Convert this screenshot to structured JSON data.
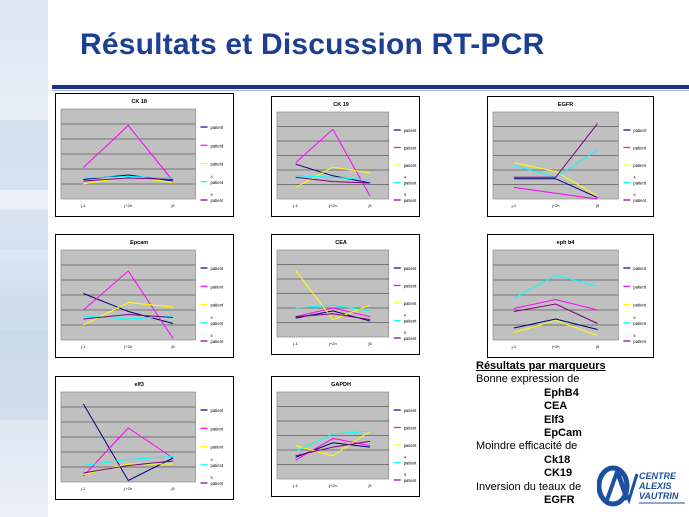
{
  "slide": {
    "title": "Résultats et Discussion  RT-PCR"
  },
  "colors": {
    "title": "#1c3f94",
    "plot_bg": "#c0c0c0"
  },
  "series_colors": [
    "#000080",
    "#ff00ff",
    "#ffff00",
    "#00ffff",
    "#800080"
  ],
  "summary": {
    "heading": "Résultats par marqueurs",
    "good": "Bonne expression de",
    "good_items": [
      "EphB4",
      "CEA",
      "Elf3",
      "EpCam"
    ],
    "less": "Moindre efficacité de",
    "less_items": [
      "Ck18",
      "CK19"
    ],
    "inversion": "Inversion   du teaux de",
    "inversion_items": [
      "EGFR"
    ]
  },
  "logo": {
    "line1": "CENTRE",
    "line2": "ALEXIS",
    "line3": "VAUTRIN"
  },
  "chart_data": [
    {
      "type": "line",
      "title": "CK 18",
      "categories": [
        "j-1",
        "j+2h",
        "j5"
      ],
      "legend": [
        "patient",
        "patient",
        "patient",
        "patient",
        "patient"
      ],
      "legend_marks": [
        "",
        "",
        "",
        "4",
        "5"
      ],
      "ylim": [
        0,
        6
      ],
      "series": [
        {
          "values": [
            1.3,
            1.6,
            1.2
          ]
        },
        {
          "values": [
            2.1,
            4.9,
            1.2
          ]
        },
        {
          "values": [
            1.0,
            1.5,
            1.1
          ]
        },
        {
          "values": [
            1.4,
            1.5,
            1.4
          ]
        },
        {
          "values": [
            1.2,
            1.4,
            1.3
          ]
        }
      ]
    },
    {
      "type": "line",
      "title": "CK 19",
      "categories": [
        "j-1",
        "j+2h",
        "j5"
      ],
      "legend": [
        "patient",
        "patient",
        "patient",
        "patient",
        "patient"
      ],
      "legend_marks": [
        "",
        "",
        "",
        "4",
        "5"
      ],
      "ylim": [
        0,
        6
      ],
      "series": [
        {
          "values": [
            2.4,
            1.6,
            1.1
          ]
        },
        {
          "values": [
            2.5,
            4.8,
            0.2
          ]
        },
        {
          "values": [
            0.8,
            2.2,
            1.8
          ]
        },
        {
          "values": [
            1.6,
            1.5,
            1.3
          ]
        },
        {
          "values": [
            1.5,
            1.2,
            1.1
          ]
        }
      ]
    },
    {
      "type": "line",
      "title": "EGFR",
      "categories": [
        "j-1",
        "j+2h",
        "j5"
      ],
      "legend": [
        "patient",
        "patient",
        "patient",
        "patient",
        "patient"
      ],
      "legend_marks": [
        "",
        "",
        "",
        "4",
        "5"
      ],
      "ylim": [
        0,
        6
      ],
      "series": [
        {
          "values": [
            1.4,
            1.4,
            0.1
          ]
        },
        {
          "values": [
            0.8,
            0.4,
            0.0
          ]
        },
        {
          "values": [
            2.5,
            1.9,
            0.2
          ]
        },
        {
          "values": [
            2.3,
            1.5,
            3.4
          ]
        },
        {
          "values": [
            1.5,
            1.5,
            5.2
          ]
        }
      ]
    },
    {
      "type": "line",
      "title": "Epcam",
      "categories": [
        "j-1",
        "j+2h",
        "j5"
      ],
      "legend": [
        "patient",
        "patient",
        "patient",
        "patient",
        "patient"
      ],
      "legend_marks": [
        "",
        "",
        "",
        "4",
        "5"
      ],
      "ylim": [
        0,
        6
      ],
      "series": [
        {
          "values": [
            3.1,
            1.9,
            1.1
          ]
        },
        {
          "values": [
            2.0,
            4.6,
            0.1
          ]
        },
        {
          "values": [
            1.0,
            2.5,
            2.2
          ]
        },
        {
          "values": [
            1.6,
            1.4,
            1.6
          ]
        },
        {
          "values": [
            1.4,
            1.7,
            1.5
          ]
        }
      ]
    },
    {
      "type": "line",
      "title": "CEA",
      "categories": [
        "j-1",
        "j+2h",
        "j5"
      ],
      "legend": [
        "patient",
        "patient",
        "patient",
        "patient",
        "patient"
      ],
      "legend_marks": [
        "",
        "",
        "",
        "4",
        "5"
      ],
      "ylim": [
        0,
        6
      ],
      "series": [
        {
          "values": [
            1.3,
            1.8,
            1.1
          ]
        },
        {
          "values": [
            1.4,
            2.0,
            1.4
          ]
        },
        {
          "values": [
            4.6,
            1.2,
            2.2
          ]
        },
        {
          "values": [
            2.0,
            2.2,
            1.8
          ]
        },
        {
          "values": [
            1.4,
            1.6,
            1.2
          ]
        }
      ]
    },
    {
      "type": "line",
      "title": "eph b4",
      "categories": [
        "j-1",
        "j+2h",
        "j5"
      ],
      "legend": [
        "patient",
        "patient",
        "patient",
        "patient",
        "patient"
      ],
      "legend_marks": [
        "",
        "",
        "",
        "4",
        "5"
      ],
      "ylim": [
        0,
        6
      ],
      "series": [
        {
          "values": [
            0.8,
            1.4,
            0.7
          ]
        },
        {
          "values": [
            2.1,
            2.7,
            2.0
          ]
        },
        {
          "values": [
            0.5,
            1.3,
            0.3
          ]
        },
        {
          "values": [
            2.8,
            4.3,
            3.6
          ]
        },
        {
          "values": [
            1.9,
            2.4,
            1.1
          ]
        }
      ]
    },
    {
      "type": "line",
      "title": "elf3",
      "categories": [
        "j-1",
        "j+2h",
        "j5"
      ],
      "legend": [
        "patient",
        "patient",
        "patient",
        "patient",
        "patient"
      ],
      "legend_marks": [
        "",
        "",
        "",
        "4",
        "5"
      ],
      "ylim": [
        0,
        6
      ],
      "series": [
        {
          "values": [
            5.2,
            0.1,
            1.6
          ]
        },
        {
          "values": [
            0.4,
            3.6,
            1.6
          ]
        },
        {
          "values": [
            0.5,
            1.2,
            1.2
          ]
        },
        {
          "values": [
            1.1,
            1.5,
            1.7
          ]
        },
        {
          "values": [
            0.6,
            1.1,
            1.4
          ]
        }
      ]
    },
    {
      "type": "line",
      "title": "GAPDH",
      "categories": [
        "j-1",
        "j+2h",
        "j5"
      ],
      "legend": [
        "patient",
        "patient",
        "patient",
        "patient",
        "patient"
      ],
      "legend_marks": [
        "",
        "",
        "",
        "4",
        "5"
      ],
      "ylim": [
        0,
        6
      ],
      "series": [
        {
          "values": [
            1.5,
            2.5,
            2.2
          ]
        },
        {
          "values": [
            1.3,
            2.8,
            2.3
          ]
        },
        {
          "values": [
            2.3,
            1.6,
            3.3
          ]
        },
        {
          "values": [
            1.9,
            3.1,
            3.3
          ]
        },
        {
          "values": [
            1.6,
            2.2,
            2.6
          ]
        }
      ]
    }
  ]
}
